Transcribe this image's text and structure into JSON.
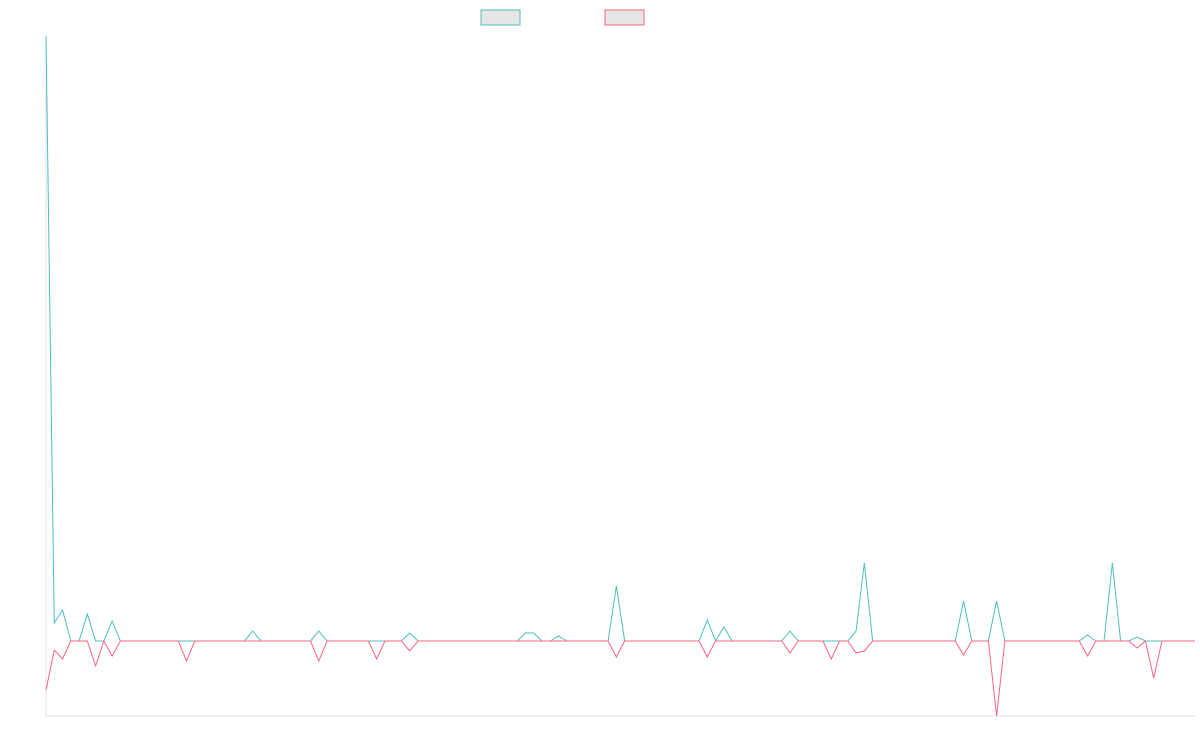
{
  "chart_data": {
    "type": "line",
    "ylim": [
      -75,
      605
    ],
    "series": [
      {
        "color": "#4bc0c0",
        "values": [
          605,
          18,
          31,
          0,
          0,
          27,
          0,
          0,
          20,
          0,
          0,
          0,
          0,
          0,
          0,
          0,
          0,
          0,
          0,
          0,
          0,
          0,
          0,
          0,
          0,
          10,
          0,
          0,
          0,
          0,
          0,
          0,
          0,
          10,
          0,
          0,
          0,
          0,
          0,
          0,
          0,
          0,
          0,
          0,
          8,
          0,
          0,
          0,
          0,
          0,
          0,
          0,
          0,
          0,
          0,
          0,
          0,
          0,
          8,
          8,
          0,
          0,
          5,
          0,
          0,
          0,
          0,
          0,
          0,
          55,
          0,
          0,
          0,
          0,
          0,
          0,
          0,
          0,
          0,
          0,
          21,
          0,
          14,
          0,
          0,
          0,
          0,
          0,
          0,
          0,
          10,
          0,
          0,
          0,
          0,
          0,
          0,
          0,
          10,
          78,
          0,
          0,
          0,
          0,
          0,
          0,
          0,
          0,
          0,
          0,
          0,
          40,
          0,
          0,
          0,
          40,
          0,
          0,
          0,
          0,
          0,
          0,
          0,
          0,
          0,
          0,
          6,
          0,
          0,
          78,
          0,
          0,
          4,
          0,
          0,
          0,
          0,
          0,
          0,
          0
        ]
      },
      {
        "color": "#ff6384",
        "values": [
          -49,
          -9,
          -18,
          0,
          0,
          0,
          -25,
          0,
          -15,
          0,
          0,
          0,
          0,
          0,
          0,
          0,
          0,
          -20,
          0,
          0,
          0,
          0,
          0,
          0,
          0,
          0,
          0,
          0,
          0,
          0,
          0,
          0,
          0,
          -20,
          0,
          0,
          0,
          0,
          0,
          0,
          -18,
          0,
          0,
          0,
          -10,
          0,
          0,
          0,
          0,
          0,
          0,
          0,
          0,
          0,
          0,
          0,
          0,
          0,
          0,
          0,
          0,
          0,
          0,
          0,
          0,
          0,
          0,
          0,
          0,
          -16,
          0,
          0,
          0,
          0,
          0,
          0,
          0,
          0,
          0,
          0,
          -16,
          0,
          0,
          0,
          0,
          0,
          0,
          0,
          0,
          0,
          -12,
          0,
          0,
          0,
          0,
          -18,
          0,
          0,
          -12,
          -10,
          0,
          0,
          0,
          0,
          0,
          0,
          0,
          0,
          0,
          0,
          0,
          -14,
          0,
          0,
          0,
          -75,
          0,
          0,
          0,
          0,
          0,
          0,
          0,
          0,
          0,
          0,
          -15,
          0,
          0,
          0,
          0,
          0,
          -7,
          0,
          -37,
          0,
          0,
          0,
          0,
          0
        ]
      }
    ]
  }
}
